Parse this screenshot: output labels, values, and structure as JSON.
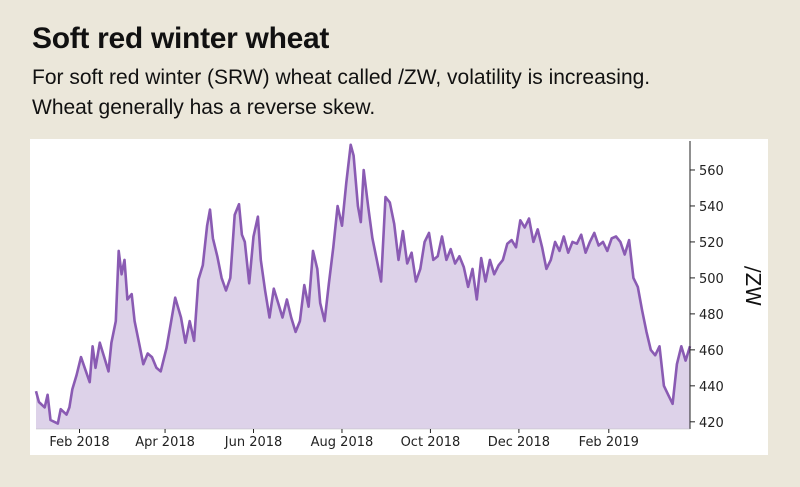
{
  "header": {
    "title": "Soft red winter wheat",
    "subtitle_line1": "For soft red winter (SRW) wheat called /ZW, volatility is increasing.",
    "subtitle_line2": "Wheat generally has a reverse skew."
  },
  "colors": {
    "line": "#8a5bb3",
    "fill": "#ddd2e9",
    "background": "#ebe7da",
    "plot_bg": "#ffffff"
  },
  "chart_data": {
    "type": "area",
    "ylabel": "/ZW",
    "y_axis_side": "right",
    "ylim": [
      416,
      575
    ],
    "yticks": [
      420,
      440,
      460,
      480,
      500,
      520,
      540,
      560
    ],
    "xlim": [
      "2018-01-02",
      "2019-03-29"
    ],
    "xticks": [
      {
        "label": "Feb 2018",
        "date": "2018-02-01"
      },
      {
        "label": "Apr 2018",
        "date": "2018-04-01"
      },
      {
        "label": "Jun 2018",
        "date": "2018-06-01"
      },
      {
        "label": "Aug 2018",
        "date": "2018-08-01"
      },
      {
        "label": "Oct 2018",
        "date": "2018-10-01"
      },
      {
        "label": "Dec 2018",
        "date": "2018-12-01"
      },
      {
        "label": "Feb 2019",
        "date": "2019-02-01"
      }
    ],
    "grid": false,
    "series": [
      {
        "points": [
          [
            "2018-01-02",
            437
          ],
          [
            "2018-01-04",
            431
          ],
          [
            "2018-01-08",
            428
          ],
          [
            "2018-01-10",
            435
          ],
          [
            "2018-01-12",
            421
          ],
          [
            "2018-01-17",
            419
          ],
          [
            "2018-01-19",
            427
          ],
          [
            "2018-01-23",
            424
          ],
          [
            "2018-01-25",
            428
          ],
          [
            "2018-01-27",
            438
          ],
          [
            "2018-01-30",
            446
          ],
          [
            "2018-02-02",
            456
          ],
          [
            "2018-02-05",
            449
          ],
          [
            "2018-02-08",
            442
          ],
          [
            "2018-02-10",
            462
          ],
          [
            "2018-02-12",
            450
          ],
          [
            "2018-02-15",
            464
          ],
          [
            "2018-02-18",
            456
          ],
          [
            "2018-02-21",
            448
          ],
          [
            "2018-02-23",
            464
          ],
          [
            "2018-02-26",
            476
          ],
          [
            "2018-02-28",
            515
          ],
          [
            "2018-03-02",
            502
          ],
          [
            "2018-03-04",
            510
          ],
          [
            "2018-03-06",
            488
          ],
          [
            "2018-03-09",
            491
          ],
          [
            "2018-03-11",
            476
          ],
          [
            "2018-03-14",
            464
          ],
          [
            "2018-03-17",
            452
          ],
          [
            "2018-03-20",
            458
          ],
          [
            "2018-03-23",
            456
          ],
          [
            "2018-03-26",
            450
          ],
          [
            "2018-03-29",
            448
          ],
          [
            "2018-04-02",
            461
          ],
          [
            "2018-04-05",
            475
          ],
          [
            "2018-04-08",
            489
          ],
          [
            "2018-04-12",
            478
          ],
          [
            "2018-04-15",
            464
          ],
          [
            "2018-04-18",
            476
          ],
          [
            "2018-04-21",
            465
          ],
          [
            "2018-04-24",
            499
          ],
          [
            "2018-04-27",
            507
          ],
          [
            "2018-04-30",
            529
          ],
          [
            "2018-05-02",
            538
          ],
          [
            "2018-05-04",
            522
          ],
          [
            "2018-05-07",
            512
          ],
          [
            "2018-05-10",
            500
          ],
          [
            "2018-05-13",
            493
          ],
          [
            "2018-05-16",
            500
          ],
          [
            "2018-05-19",
            535
          ],
          [
            "2018-05-22",
            541
          ],
          [
            "2018-05-24",
            524
          ],
          [
            "2018-05-26",
            520
          ],
          [
            "2018-05-29",
            497
          ],
          [
            "2018-06-01",
            523
          ],
          [
            "2018-06-04",
            534
          ],
          [
            "2018-06-06",
            510
          ],
          [
            "2018-06-09",
            493
          ],
          [
            "2018-06-12",
            478
          ],
          [
            "2018-06-15",
            494
          ],
          [
            "2018-06-18",
            486
          ],
          [
            "2018-06-21",
            478
          ],
          [
            "2018-06-24",
            488
          ],
          [
            "2018-06-27",
            478
          ],
          [
            "2018-06-30",
            470
          ],
          [
            "2018-07-03",
            476
          ],
          [
            "2018-07-06",
            496
          ],
          [
            "2018-07-09",
            484
          ],
          [
            "2018-07-12",
            515
          ],
          [
            "2018-07-15",
            505
          ],
          [
            "2018-07-17",
            486
          ],
          [
            "2018-07-20",
            476
          ],
          [
            "2018-07-23",
            497
          ],
          [
            "2018-07-26",
            517
          ],
          [
            "2018-07-29",
            540
          ],
          [
            "2018-08-01",
            529
          ],
          [
            "2018-08-04",
            553
          ],
          [
            "2018-08-07",
            574
          ],
          [
            "2018-08-09",
            568
          ],
          [
            "2018-08-12",
            540
          ],
          [
            "2018-08-14",
            531
          ],
          [
            "2018-08-16",
            560
          ],
          [
            "2018-08-19",
            540
          ],
          [
            "2018-08-22",
            522
          ],
          [
            "2018-08-25",
            510
          ],
          [
            "2018-08-28",
            498
          ],
          [
            "2018-08-31",
            545
          ],
          [
            "2018-09-03",
            542
          ],
          [
            "2018-09-06",
            530
          ],
          [
            "2018-09-09",
            510
          ],
          [
            "2018-09-12",
            526
          ],
          [
            "2018-09-15",
            508
          ],
          [
            "2018-09-18",
            514
          ],
          [
            "2018-09-21",
            498
          ],
          [
            "2018-09-24",
            505
          ],
          [
            "2018-09-27",
            520
          ],
          [
            "2018-09-30",
            525
          ],
          [
            "2018-10-03",
            510
          ],
          [
            "2018-10-06",
            512
          ],
          [
            "2018-10-09",
            523
          ],
          [
            "2018-10-12",
            510
          ],
          [
            "2018-10-15",
            516
          ],
          [
            "2018-10-18",
            508
          ],
          [
            "2018-10-21",
            512
          ],
          [
            "2018-10-24",
            506
          ],
          [
            "2018-10-27",
            495
          ],
          [
            "2018-10-30",
            505
          ],
          [
            "2018-11-02",
            488
          ],
          [
            "2018-11-05",
            511
          ],
          [
            "2018-11-08",
            498
          ],
          [
            "2018-11-11",
            510
          ],
          [
            "2018-11-14",
            502
          ],
          [
            "2018-11-17",
            507
          ],
          [
            "2018-11-20",
            510
          ],
          [
            "2018-11-23",
            519
          ],
          [
            "2018-11-26",
            521
          ],
          [
            "2018-11-29",
            517
          ],
          [
            "2018-12-02",
            532
          ],
          [
            "2018-12-05",
            528
          ],
          [
            "2018-12-08",
            533
          ],
          [
            "2018-12-11",
            520
          ],
          [
            "2018-12-14",
            527
          ],
          [
            "2018-12-17",
            517
          ],
          [
            "2018-12-20",
            505
          ],
          [
            "2018-12-23",
            510
          ],
          [
            "2018-12-26",
            520
          ],
          [
            "2018-12-29",
            515
          ],
          [
            "2019-01-01",
            523
          ],
          [
            "2019-01-04",
            514
          ],
          [
            "2019-01-07",
            520
          ],
          [
            "2019-01-10",
            519
          ],
          [
            "2019-01-13",
            524
          ],
          [
            "2019-01-16",
            514
          ],
          [
            "2019-01-19",
            520
          ],
          [
            "2019-01-22",
            525
          ],
          [
            "2019-01-25",
            518
          ],
          [
            "2019-01-28",
            520
          ],
          [
            "2019-01-31",
            515
          ],
          [
            "2019-02-03",
            522
          ],
          [
            "2019-02-06",
            523
          ],
          [
            "2019-02-09",
            520
          ],
          [
            "2019-02-12",
            513
          ],
          [
            "2019-02-15",
            521
          ],
          [
            "2019-02-18",
            500
          ],
          [
            "2019-02-21",
            495
          ],
          [
            "2019-02-24",
            482
          ],
          [
            "2019-02-27",
            470
          ],
          [
            "2019-03-02",
            460
          ],
          [
            "2019-03-05",
            457
          ],
          [
            "2019-03-08",
            462
          ],
          [
            "2019-03-11",
            440
          ],
          [
            "2019-03-14",
            435
          ],
          [
            "2019-03-17",
            430
          ],
          [
            "2019-03-20",
            452
          ],
          [
            "2019-03-23",
            462
          ],
          [
            "2019-03-26",
            454
          ],
          [
            "2019-03-29",
            462
          ]
        ]
      }
    ]
  }
}
